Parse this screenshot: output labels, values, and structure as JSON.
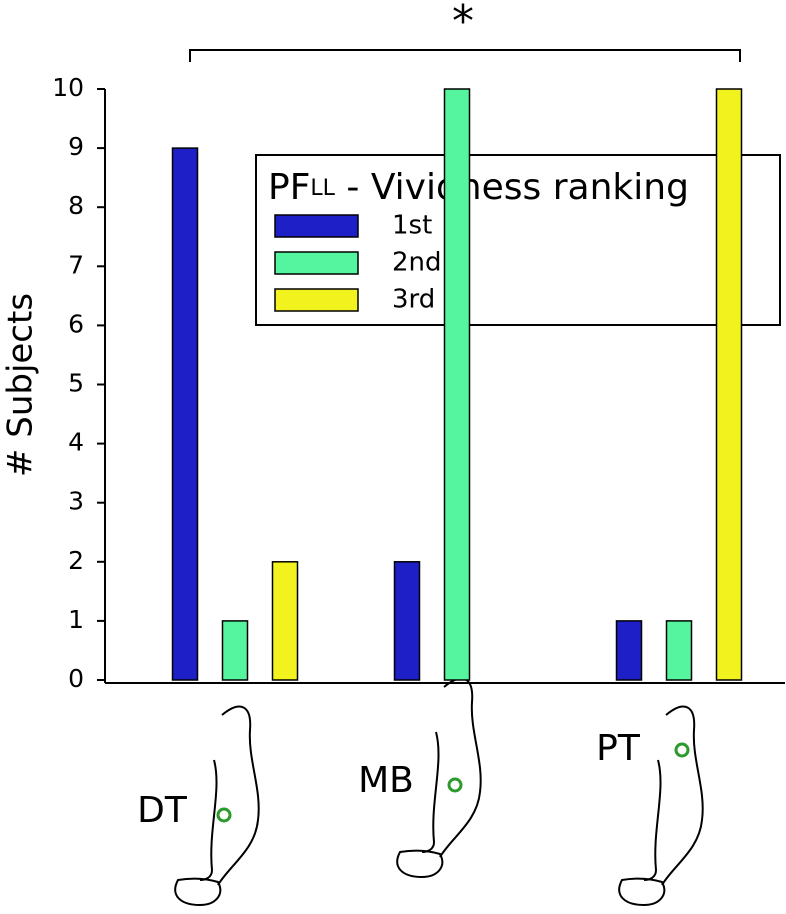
{
  "chart_data": {
    "type": "bar",
    "y_label": "# Subjects",
    "annotation": "*",
    "legend_title": {
      "main": "PF",
      "sub": "LL",
      "rest": " - Vividness ranking"
    },
    "categories": [
      "DT",
      "MB",
      "PT"
    ],
    "series": [
      {
        "name": "1st",
        "color": "#1f1fc8",
        "values": [
          9,
          2,
          1
        ]
      },
      {
        "name": "2nd",
        "color": "#55f5a0",
        "values": [
          1,
          10,
          1
        ]
      },
      {
        "name": "3rd",
        "color": "#f2f21e",
        "values": [
          2,
          0,
          10
        ]
      }
    ],
    "ylim": [
      0,
      10
    ],
    "yticks": [
      0,
      1,
      2,
      3,
      4,
      5,
      6,
      7,
      8,
      9,
      10
    ]
  }
}
